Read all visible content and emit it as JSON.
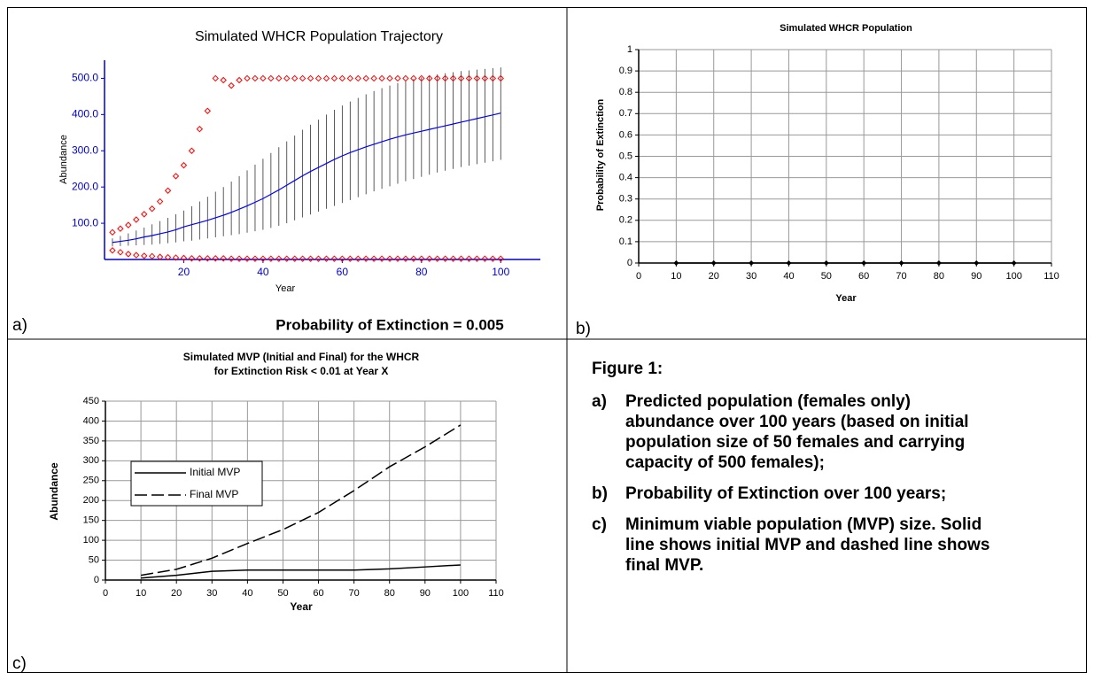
{
  "panels": {
    "a": "a)",
    "b": "b)",
    "c": "c)"
  },
  "chart_data": [
    {
      "type": "errorbar",
      "title": "Simulated WHCR Population Trajectory",
      "xlabel": "Year",
      "ylabel": "Abundance",
      "annotation": "Probability of Extinction = 0.005",
      "x": [
        2,
        4,
        6,
        8,
        10,
        12,
        14,
        16,
        18,
        20,
        22,
        24,
        26,
        28,
        30,
        32,
        34,
        36,
        38,
        40,
        42,
        44,
        46,
        48,
        50,
        52,
        54,
        56,
        58,
        60,
        62,
        64,
        66,
        68,
        70,
        72,
        74,
        76,
        78,
        80,
        82,
        84,
        86,
        88,
        90,
        92,
        94,
        96,
        98,
        100
      ],
      "values": [
        47,
        50,
        53,
        57,
        62,
        66,
        71,
        76,
        82,
        90,
        96,
        102,
        108,
        115,
        122,
        130,
        139,
        148,
        158,
        168,
        180,
        192,
        205,
        218,
        231,
        243,
        254,
        265,
        276,
        286,
        295,
        303,
        311,
        318,
        325,
        332,
        338,
        344,
        349,
        354,
        359,
        364,
        369,
        374,
        379,
        384,
        389,
        394,
        399,
        404
      ],
      "error_high": [
        58,
        65,
        72,
        80,
        88,
        97,
        106,
        115,
        125,
        135,
        147,
        160,
        173,
        187,
        200,
        215,
        230,
        246,
        262,
        278,
        294,
        310,
        326,
        342,
        358,
        372,
        386,
        400,
        413,
        425,
        436,
        446,
        456,
        465,
        473,
        480,
        487,
        493,
        498,
        503,
        507,
        511,
        514,
        517,
        520,
        522,
        524,
        526,
        528,
        530
      ],
      "error_low": [
        36,
        37,
        38,
        39,
        40,
        41,
        43,
        45,
        47,
        50,
        52,
        55,
        58,
        61,
        64,
        67,
        70,
        74,
        78,
        82,
        87,
        93,
        100,
        108,
        116,
        124,
        132,
        140,
        148,
        156,
        164,
        172,
        180,
        188,
        195,
        202,
        209,
        216,
        222,
        228,
        234,
        240,
        245,
        250,
        255,
        259,
        263,
        267,
        271,
        275
      ],
      "max": [
        75,
        85,
        95,
        110,
        125,
        140,
        160,
        190,
        230,
        260,
        300,
        360,
        410,
        500,
        495,
        480,
        495,
        500,
        500,
        500,
        500,
        500,
        500,
        500,
        500,
        500,
        500,
        500,
        500,
        500,
        500,
        500,
        500,
        500,
        500,
        500,
        500,
        500,
        500,
        500,
        500,
        500,
        500,
        500,
        500,
        500,
        500,
        500,
        500,
        500
      ],
      "min": [
        25,
        20,
        15,
        12,
        10,
        9,
        7,
        6,
        5,
        4,
        3,
        3,
        3,
        3,
        3,
        2,
        2,
        2,
        2,
        2,
        2,
        2,
        2,
        2,
        2,
        2,
        2,
        2,
        2,
        2,
        2,
        2,
        2,
        2,
        2,
        2,
        2,
        2,
        2,
        2,
        2,
        2,
        2,
        2,
        2,
        2,
        2,
        2,
        2,
        2
      ],
      "color": "#0000ff",
      "error_color": "#333333",
      "marker_color": "#ff0000",
      "axis_color": "#0000cc",
      "xlim": [
        0,
        110
      ],
      "ylim": [
        0,
        550
      ],
      "xticks": [
        20,
        40,
        60,
        80,
        100
      ],
      "yticks": [
        {
          "value": 100,
          "label": "100.0"
        },
        {
          "value": 200,
          "label": "200.0"
        },
        {
          "value": 300,
          "label": "300.0"
        },
        {
          "value": 400,
          "label": "400.0"
        },
        {
          "value": 500,
          "label": "500.0"
        }
      ],
      "grid": false
    },
    {
      "type": "line",
      "title": "Simulated WHCR Population",
      "xlabel": "Year",
      "ylabel": "Probability of Extinction",
      "x": [
        10,
        20,
        30,
        40,
        50,
        60,
        70,
        80,
        90,
        100
      ],
      "series": [
        {
          "color": "#000000",
          "style": "solid",
          "markers": true,
          "values": [
            0,
            0,
            0,
            0,
            0,
            0,
            0,
            0,
            0,
            0
          ]
        }
      ],
      "xlim": [
        0,
        110
      ],
      "ylim": [
        0,
        1
      ],
      "xticks": [
        0,
        10,
        20,
        30,
        40,
        50,
        60,
        70,
        80,
        90,
        100,
        110
      ],
      "yticks": [
        0,
        0.1,
        0.2,
        0.3,
        0.4,
        0.5,
        0.6,
        0.7,
        0.8,
        0.9,
        1
      ],
      "grid": true,
      "axis_color": "#000000"
    },
    {
      "type": "line",
      "title": [
        "Simulated MVP (Initial and Final) for the WHCR",
        "for Extinction Risk < 0.01 at Year X"
      ],
      "xlabel": "Year",
      "ylabel": "Abundance",
      "x": [
        10,
        20,
        30,
        40,
        50,
        60,
        70,
        80,
        90,
        100
      ],
      "series": [
        {
          "name": "Initial MVP",
          "color": "#000000",
          "style": "solid",
          "markers": false,
          "values": [
            5,
            12,
            22,
            25,
            25,
            25,
            25,
            28,
            33,
            38
          ]
        },
        {
          "name": "Final MVP",
          "color": "#000000",
          "style": "dashed",
          "markers": false,
          "values": [
            12,
            27,
            55,
            92,
            127,
            170,
            225,
            285,
            335,
            390
          ]
        }
      ],
      "xlim": [
        0,
        110
      ],
      "ylim": [
        0,
        450
      ],
      "xticks": [
        0,
        10,
        20,
        30,
        40,
        50,
        60,
        70,
        80,
        90,
        100,
        110
      ],
      "yticks": [
        0,
        50,
        100,
        150,
        200,
        250,
        300,
        350,
        400,
        450
      ],
      "grid": true,
      "legend": "left",
      "axis_color": "#000000"
    }
  ],
  "caption": {
    "title": "Figure 1:",
    "items": [
      {
        "label": "a)",
        "text": "Predicted population (females only) abundance over 100 years (based on initial population size of 50 females and carrying capacity of 500 females);"
      },
      {
        "label": "b)",
        "text": "Probability of Extinction over 100 years;"
      },
      {
        "label": "c)",
        "text": "Minimum viable population (MVP) size. Solid line shows initial MVP and dashed line shows final MVP."
      }
    ]
  }
}
